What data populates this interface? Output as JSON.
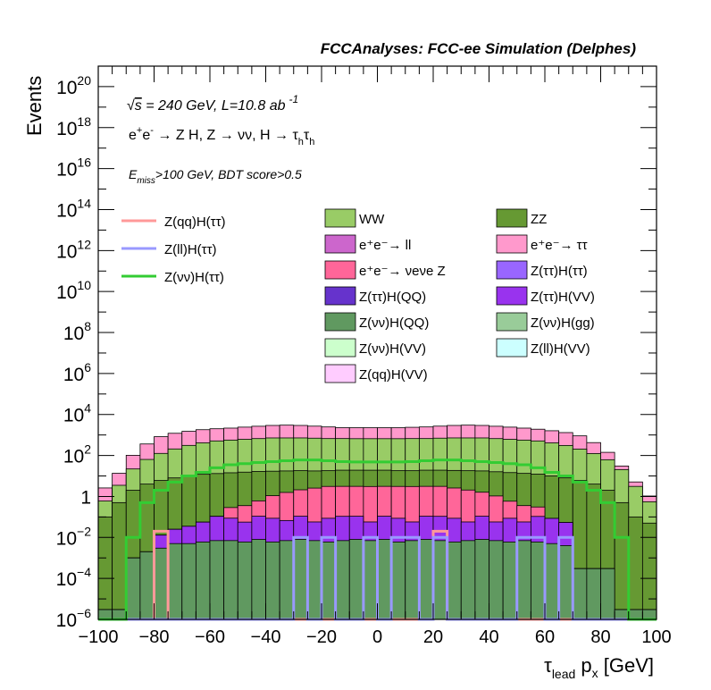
{
  "chart_data": {
    "type": "histogram",
    "title": "FCCAnalyses: FCC-ee Simulation (Delphes)",
    "xlabel": {
      "main": "τ",
      "sub": "lead",
      "mid": " p",
      "sub2": "x",
      "tail": " [GeV]"
    },
    "ylabel": "Events",
    "xlim": [
      -100,
      100
    ],
    "ylim": [
      1e-06,
      1e+21
    ],
    "y_scale": "log",
    "x_ticks": [
      "−100",
      "−80",
      "−60",
      "−40",
      "−20",
      "0",
      "20",
      "40",
      "60",
      "80",
      "100"
    ],
    "x_tick_values": [
      -100,
      -80,
      -60,
      -40,
      -20,
      0,
      20,
      40,
      60,
      80,
      100
    ],
    "y_tick_values": [
      1e-06,
      0.0001,
      0.01,
      1,
      100.0,
      10000.0,
      1000000.0,
      100000000.0,
      10000000000.0,
      1000000000000.0,
      100000000000000.0,
      1e+16,
      1e+18,
      1e+20
    ],
    "y_tick_labels": [
      {
        "base": "10",
        "exp": "−6"
      },
      {
        "base": "10",
        "exp": "−4"
      },
      {
        "base": "10",
        "exp": "−2"
      },
      {
        "base": "1",
        "exp": ""
      },
      {
        "base": "10",
        "exp": "2"
      },
      {
        "base": "10",
        "exp": "4"
      },
      {
        "base": "10",
        "exp": "6"
      },
      {
        "base": "10",
        "exp": "8"
      },
      {
        "base": "10",
        "exp": "10"
      },
      {
        "base": "10",
        "exp": "12"
      },
      {
        "base": "10",
        "exp": "14"
      },
      {
        "base": "10",
        "exp": "16"
      },
      {
        "base": "10",
        "exp": "18"
      },
      {
        "base": "10",
        "exp": "20"
      }
    ],
    "bin_edges_start": -100,
    "bin_width": 5,
    "annotations": [
      "√s = 240 GeV, L=10.8 ab⁻¹",
      "e⁺e⁻ → Z H, Z → νν, H → τhτh",
      "Emiss>100 GeV, BDT score>0.5"
    ],
    "stack": [
      {
        "name": "Z(νν)H(QQ)",
        "color": "#609960",
        "values": [
          3e-06,
          3e-06,
          0.001,
          0.002,
          0.003,
          0.005,
          0.005,
          0.006,
          0.007,
          0.007,
          0.006,
          0.008,
          0.006,
          0.007,
          0.008,
          0.007,
          0.006,
          0.007,
          0.008,
          0.007,
          0.008,
          0.006,
          0.007,
          0.008,
          0.007,
          0.006,
          0.007,
          0.008,
          0.007,
          0.006,
          0.007,
          0.006,
          0.005,
          0.004,
          0.0003,
          0.0003,
          0.0003,
          3e-06,
          3e-06,
          3e-06
        ]
      },
      {
        "name": "Z(ττ)H(VV)",
        "color": "#9933ee",
        "values": [
          0,
          0,
          0,
          0,
          0.01,
          0.02,
          0.03,
          0.05,
          0.1,
          0.08,
          0.05,
          0.1,
          0.08,
          0.06,
          0.1,
          0.05,
          0.08,
          0.1,
          0.1,
          0.05,
          0.1,
          0.08,
          0.05,
          0.1,
          0.1,
          0.08,
          0.05,
          0.1,
          0.05,
          0.08,
          0.05,
          0.1,
          0.08,
          0.05,
          0,
          0,
          0,
          0,
          0,
          0
        ]
      },
      {
        "name": "e⁺e⁻→ νeνe Z",
        "color": "#ff6699",
        "values": [
          0,
          0,
          0,
          0,
          0,
          0,
          0,
          0,
          0,
          0.2,
          0.3,
          0.5,
          1,
          1.5,
          2,
          2.5,
          3,
          3,
          3,
          3,
          3,
          3,
          3,
          3,
          3,
          2.5,
          2,
          1.5,
          1,
          0.5,
          0.3,
          0.2,
          0,
          0,
          0,
          0,
          0,
          0,
          0,
          0
        ]
      },
      {
        "name": "ZZ",
        "color": "#669933",
        "values": [
          0.1,
          0.5,
          2,
          4,
          6,
          8,
          10,
          12,
          13,
          14,
          15,
          16,
          16,
          16,
          16,
          15,
          15,
          16,
          16,
          16,
          16,
          15,
          15,
          16,
          16,
          16,
          16,
          16,
          15,
          14,
          13,
          12,
          10,
          8,
          6,
          4,
          2,
          0.5,
          0.1,
          0.05
        ]
      },
      {
        "name": "WW",
        "color": "#99cc66",
        "values": [
          0.5,
          3,
          20,
          60,
          120,
          200,
          300,
          400,
          500,
          550,
          600,
          650,
          700,
          700,
          700,
          680,
          650,
          650,
          640,
          640,
          640,
          640,
          650,
          650,
          680,
          700,
          700,
          700,
          650,
          600,
          550,
          500,
          400,
          300,
          200,
          120,
          60,
          20,
          3,
          0.5
        ]
      },
      {
        "name": "e⁺e⁻→ ττ",
        "color": "#ff99cc",
        "values": [
          2,
          10,
          80,
          300,
          700,
          1000,
          1200,
          1400,
          1500,
          1600,
          1800,
          2000,
          2200,
          2300,
          2200,
          2000,
          1800,
          1600,
          1600,
          1600,
          1600,
          1600,
          1700,
          1800,
          2000,
          2200,
          2300,
          2200,
          2000,
          1800,
          1600,
          1400,
          1200,
          1000,
          700,
          300,
          80,
          10,
          2,
          0.5
        ]
      }
    ],
    "signals": [
      {
        "name": "Z(qq)H(ττ)",
        "color": "#ff9999",
        "values": [
          0,
          0,
          0,
          0,
          0.02,
          0,
          0,
          0,
          0,
          0,
          0,
          0,
          0,
          0,
          0,
          0,
          0,
          0,
          0,
          0,
          0,
          0,
          0,
          0,
          0.02,
          0,
          0,
          0,
          0,
          0,
          0,
          0,
          0,
          0,
          0,
          0,
          0,
          0,
          0,
          0
        ]
      },
      {
        "name": "Z(ll)H(ττ)",
        "color": "#9999ff",
        "values": [
          0,
          0,
          0,
          0,
          0,
          0,
          0,
          0,
          0,
          0,
          0,
          0,
          0,
          0,
          0.01,
          0,
          0.01,
          0,
          0,
          0.01,
          0,
          0.01,
          0.01,
          0,
          0.01,
          0,
          0,
          0,
          0,
          0,
          0.01,
          0.01,
          0,
          0.01,
          0,
          0,
          0,
          0,
          0,
          0
        ]
      },
      {
        "name": "Z(νν)H(ττ)",
        "color": "#33cc33",
        "values": [
          0,
          0,
          0.01,
          0.5,
          2,
          5,
          10,
          15,
          25,
          35,
          40,
          45,
          50,
          55,
          60,
          60,
          55,
          50,
          48,
          48,
          48,
          48,
          50,
          55,
          60,
          60,
          55,
          50,
          45,
          40,
          35,
          25,
          15,
          10,
          5,
          2,
          0.5,
          0.01,
          0,
          0
        ]
      }
    ],
    "legend_left": [
      {
        "label": "Z(qq)H(ττ)",
        "color": "#ff9999"
      },
      {
        "label": "Z(ll)H(ττ)",
        "color": "#9999ff"
      },
      {
        "label": "Z(νν)H(ττ)",
        "color": "#33cc33"
      }
    ],
    "legend_right": [
      {
        "label": "WW",
        "color": "#99cc66"
      },
      {
        "label": "ZZ",
        "color": "#669933"
      },
      {
        "label": "e⁺e⁻→ ll",
        "color": "#cc66cc"
      },
      {
        "label": "e⁺e⁻→ ττ",
        "color": "#ff99cc"
      },
      {
        "label": "e⁺e⁻→ νeνe Z",
        "color": "#ff6699"
      },
      {
        "label": "Z(ττ)H(ττ)",
        "color": "#9966ff"
      },
      {
        "label": "Z(ττ)H(QQ)",
        "color": "#6633cc"
      },
      {
        "label": "Z(ττ)H(VV)",
        "color": "#9933ee"
      },
      {
        "label": "Z(νν)H(QQ)",
        "color": "#609960"
      },
      {
        "label": "Z(νν)H(gg)",
        "color": "#99cc99"
      },
      {
        "label": "Z(νν)H(VV)",
        "color": "#ccffcc"
      },
      {
        "label": "Z(ll)H(VV)",
        "color": "#ccffff"
      },
      {
        "label": "Z(qq)H(VV)",
        "color": "#ffccff"
      }
    ]
  }
}
